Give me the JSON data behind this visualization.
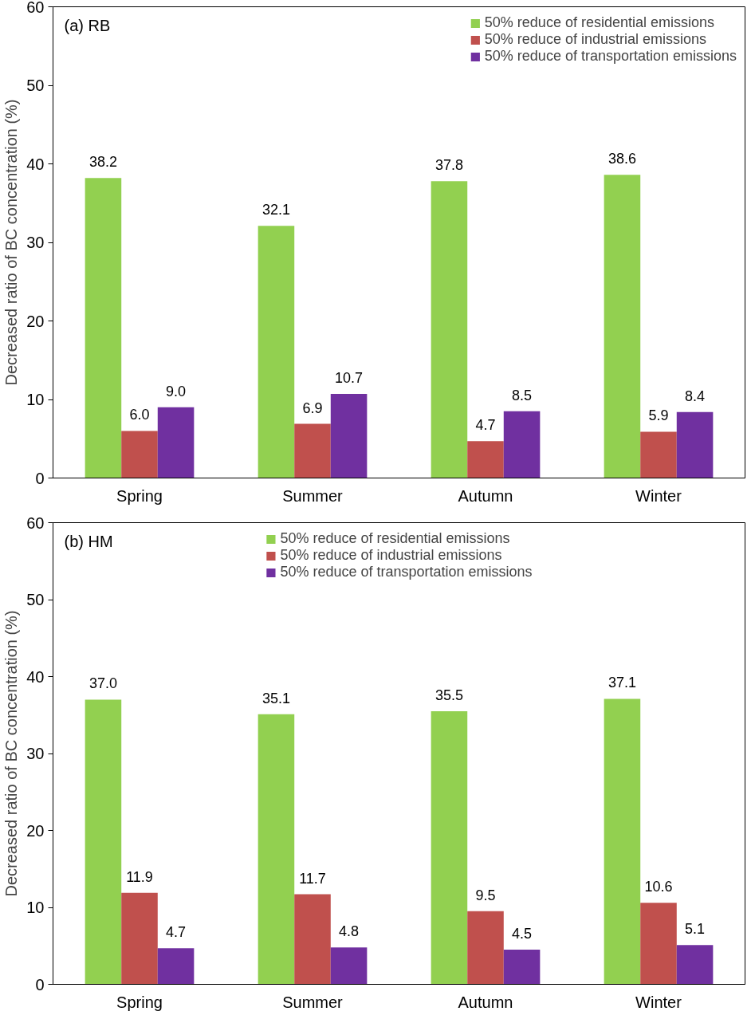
{
  "chart_data": [
    {
      "type": "bar",
      "title": "(a) RB",
      "ylabel": "Decreased ratio of BC concentration (%)",
      "categories": [
        "Spring",
        "Summer",
        "Autumn",
        "Winter"
      ],
      "ylim": [
        0,
        60
      ],
      "yticks": [
        0,
        10,
        20,
        30,
        40,
        50,
        60
      ],
      "grid": false,
      "legend": "top right",
      "series": [
        {
          "name": "50% reduce of residential emissions",
          "color": "#92d050",
          "values": [
            38.2,
            32.1,
            37.8,
            38.6
          ],
          "value_labels": [
            "38.2",
            "32.1",
            "37.8",
            "38.6"
          ]
        },
        {
          "name": "50% reduce of industrial emissions",
          "color": "#c0504d",
          "values": [
            6.0,
            6.9,
            4.7,
            5.9
          ],
          "value_labels": [
            "6.0",
            "6.9",
            "4.7",
            "5.9"
          ]
        },
        {
          "name": "50% reduce of transportation emissions",
          "color": "#7030a0",
          "values": [
            9.0,
            10.7,
            8.5,
            8.4
          ],
          "value_labels": [
            "9.0",
            "10.7",
            "8.5",
            "8.4"
          ]
        }
      ]
    },
    {
      "type": "bar",
      "title": "(b) HM",
      "ylabel": "Decreased ratio of BC concentration (%)",
      "categories": [
        "Spring",
        "Summer",
        "Autumn",
        "Winter"
      ],
      "ylim": [
        0,
        60
      ],
      "yticks": [
        0,
        10,
        20,
        30,
        40,
        50,
        60
      ],
      "grid": false,
      "legend": "top",
      "series": [
        {
          "name": "50% reduce of residential emissions",
          "color": "#92d050",
          "values": [
            37.0,
            35.1,
            35.5,
            37.1
          ],
          "value_labels": [
            "37.0",
            "35.1",
            "35.5",
            "37.1"
          ]
        },
        {
          "name": "50% reduce of industrial emissions",
          "color": "#c0504d",
          "values": [
            11.9,
            11.7,
            9.5,
            10.6
          ],
          "value_labels": [
            "11.9",
            "11.7",
            "9.5",
            "10.6"
          ]
        },
        {
          "name": "50% reduce of transportation emissions",
          "color": "#7030a0",
          "values": [
            4.7,
            4.8,
            4.5,
            5.1
          ],
          "value_labels": [
            "4.7",
            "4.8",
            "4.5",
            "5.1"
          ]
        }
      ]
    }
  ]
}
